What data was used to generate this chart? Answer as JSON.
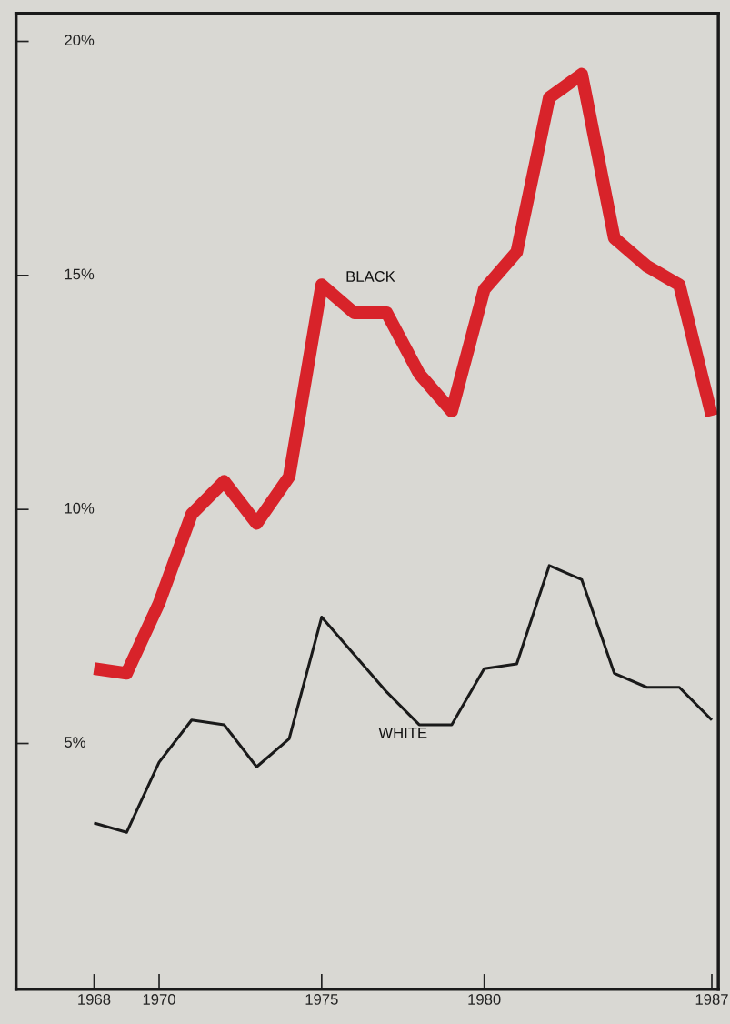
{
  "chart_data": {
    "type": "line",
    "x": [
      1968,
      1969,
      1970,
      1971,
      1972,
      1973,
      1974,
      1975,
      1976,
      1977,
      1978,
      1979,
      1980,
      1981,
      1982,
      1983,
      1984,
      1985,
      1986,
      1987
    ],
    "series": [
      {
        "name": "BLACK",
        "color": "#d8232a",
        "values": [
          6.6,
          6.5,
          8.0,
          9.9,
          10.6,
          9.7,
          10.7,
          14.8,
          14.2,
          14.2,
          12.9,
          12.1,
          14.7,
          15.5,
          18.8,
          19.3,
          15.8,
          15.2,
          14.8,
          12.0
        ]
      },
      {
        "name": "WHITE",
        "color": "#1a1a1a",
        "values": [
          3.3,
          3.1,
          4.6,
          5.5,
          5.4,
          4.5,
          5.1,
          7.7,
          6.9,
          6.1,
          5.4,
          5.4,
          6.6,
          6.7,
          8.8,
          8.5,
          6.5,
          6.2,
          6.2,
          5.5
        ]
      }
    ],
    "xlim": [
      1965.6,
      1987.2
    ],
    "ylim": [
      -0.25,
      20.6
    ],
    "xticks": [
      1968,
      1970,
      1975,
      1980,
      1987
    ],
    "yticks": [
      {
        "value": 5,
        "label": "5%"
      },
      {
        "value": 10,
        "label": "10%"
      },
      {
        "value": 15,
        "label": "15%"
      },
      {
        "value": 20,
        "label": "20%"
      }
    ],
    "grid": false,
    "legend": false,
    "marker": "none",
    "line_style": "solid"
  }
}
